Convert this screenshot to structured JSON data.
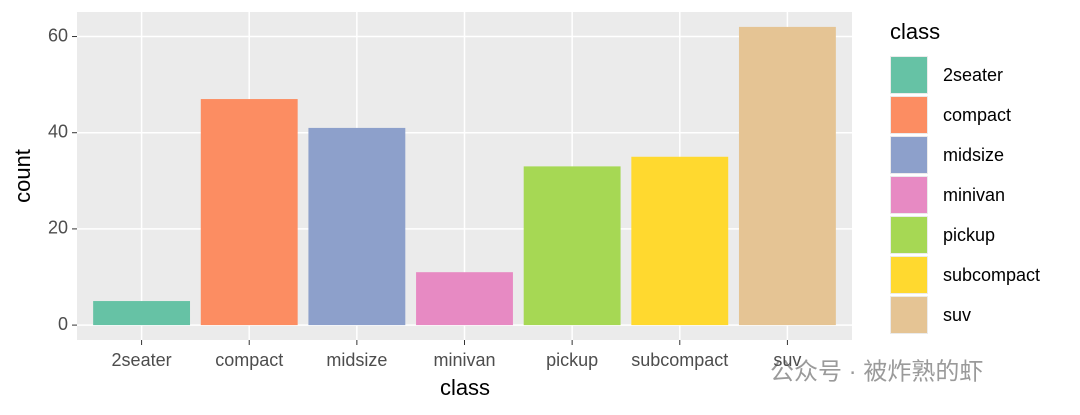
{
  "chart_data": {
    "type": "bar",
    "categories": [
      "2seater",
      "compact",
      "midsize",
      "minivan",
      "pickup",
      "subcompact",
      "suv"
    ],
    "values": [
      5,
      47,
      41,
      11,
      33,
      35,
      62
    ],
    "colors": [
      "#66C2A5",
      "#FC8D62",
      "#8DA0CB",
      "#E78AC3",
      "#A6D854",
      "#FFD92F",
      "#E5C494"
    ],
    "xlabel": "class",
    "ylabel": "count",
    "legend_title": "class",
    "ylim": [
      -3.1,
      65.1
    ],
    "yticks": [
      0,
      20,
      40,
      60
    ],
    "grid": true,
    "legend": "right"
  },
  "watermark": "公众号 · 被炸熟的虾"
}
